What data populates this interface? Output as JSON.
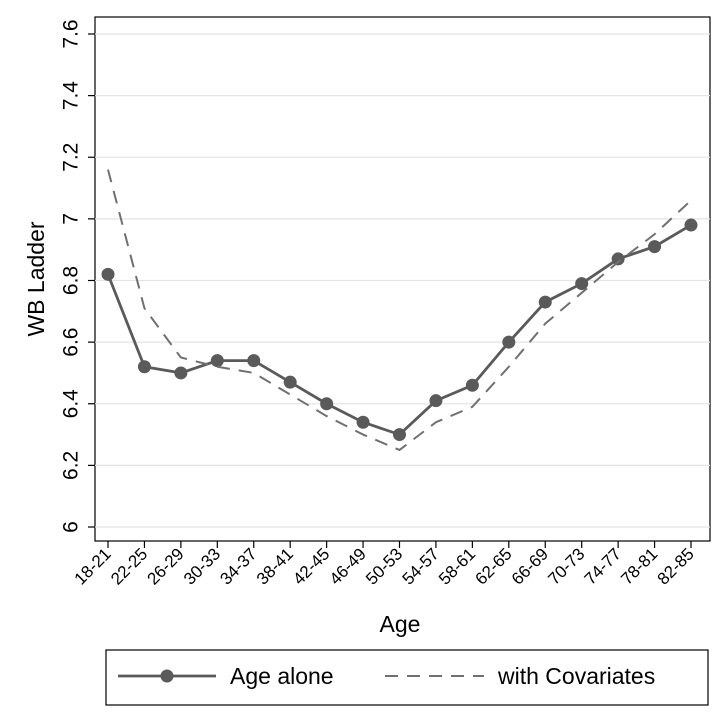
{
  "chart_data": {
    "type": "line",
    "xlabel": "Age",
    "ylabel": "WB Ladder",
    "categories": [
      "18-21",
      "22-25",
      "26-29",
      "30-33",
      "34-37",
      "38-41",
      "42-45",
      "46-49",
      "50-53",
      "54-57",
      "58-61",
      "62-65",
      "66-69",
      "70-73",
      "74-77",
      "78-81",
      "82-85"
    ],
    "ylim": [
      6,
      7.6
    ],
    "yticks": [
      6,
      6.2,
      6.4,
      6.6,
      6.8,
      7,
      7.2,
      7.4,
      7.6
    ],
    "ytick_labels": [
      "6",
      "6.2",
      "6.4",
      "6.6",
      "6.8",
      "7",
      "7.2",
      "7.4",
      "7.6"
    ],
    "grid": "horizontal",
    "legend_position": "bottom",
    "series": [
      {
        "name": "Age alone",
        "style": "solid-with-markers",
        "color": "#5a5a5a",
        "values": [
          6.82,
          6.52,
          6.5,
          6.54,
          6.54,
          6.47,
          6.4,
          6.34,
          6.3,
          6.41,
          6.46,
          6.6,
          6.73,
          6.79,
          6.87,
          6.91,
          6.98
        ]
      },
      {
        "name": "with Covariates",
        "style": "dashed",
        "color": "#707070",
        "values": [
          7.16,
          6.71,
          6.55,
          6.52,
          6.5,
          6.43,
          6.36,
          6.3,
          6.25,
          6.34,
          6.39,
          6.52,
          6.66,
          6.76,
          6.86,
          6.95,
          7.06
        ]
      }
    ]
  }
}
